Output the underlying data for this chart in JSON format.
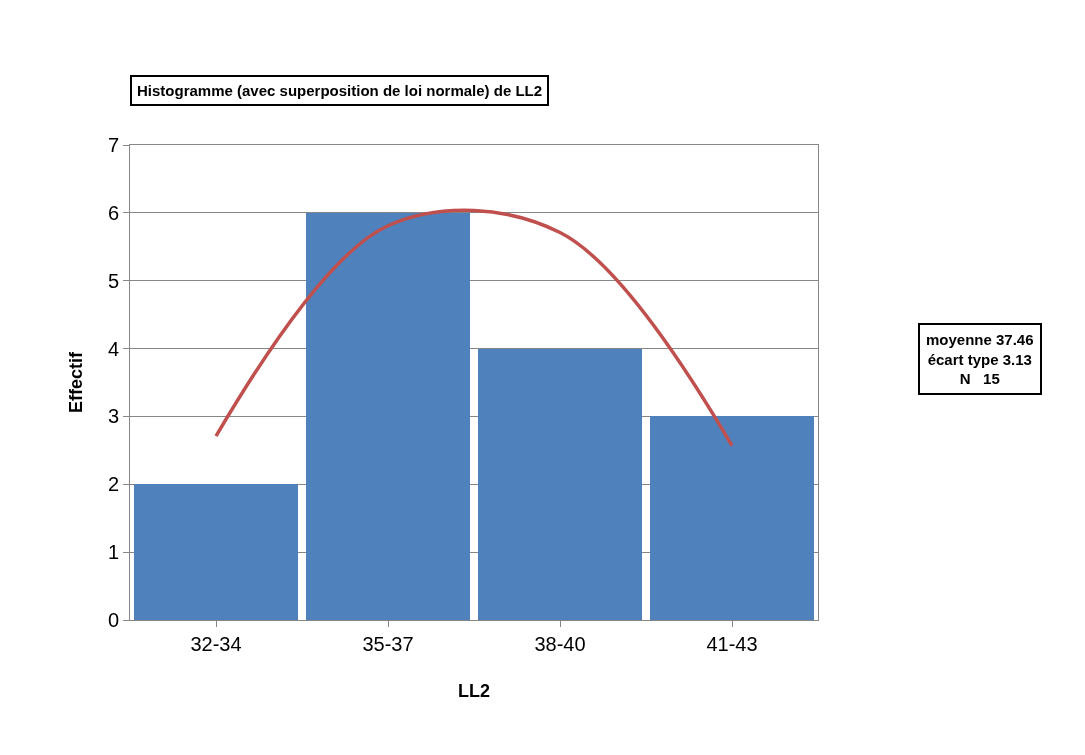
{
  "chart_data": {
    "type": "bar",
    "title": "Histogramme (avec superposition de loi normale) de LL2",
    "xlabel": "LL2",
    "ylabel": "Effectif",
    "categories": [
      "32-34",
      "35-37",
      "38-40",
      "41-43"
    ],
    "values": [
      2,
      6,
      4,
      3
    ],
    "color": "#4f81bd",
    "series": [
      {
        "type": "line",
        "color": "#c0504d",
        "values": [
          2.71,
          5.81,
          5.71,
          2.57
        ]
      }
    ],
    "ylim": [
      0,
      7
    ],
    "yticks": [
      0,
      1,
      2,
      3,
      4,
      5,
      6,
      7
    ],
    "grid": "y",
    "annotations": [
      "moyenne 37.46\nécart type 3.13\nN   15"
    ]
  }
}
